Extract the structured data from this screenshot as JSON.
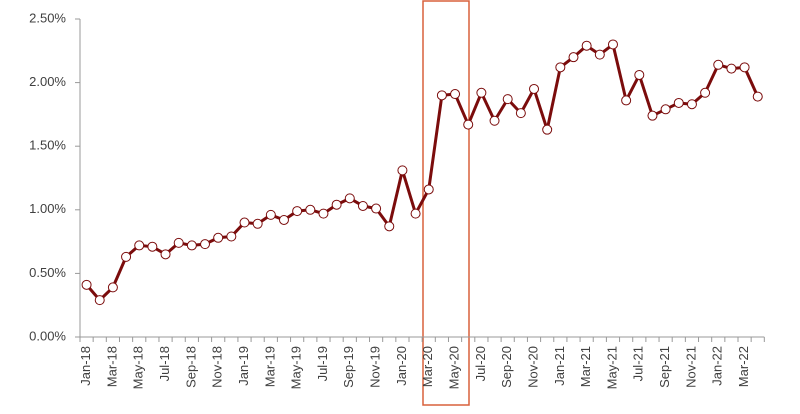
{
  "chart_data": {
    "type": "line",
    "categories": [
      "Jan-18",
      null,
      "Mar-18",
      null,
      "May-18",
      null,
      "Jul-18",
      null,
      "Sep-18",
      null,
      "Nov-18",
      null,
      "Jan-19",
      null,
      "Mar-19",
      null,
      "May-19",
      null,
      "Jul-19",
      null,
      "Sep-19",
      null,
      "Nov-19",
      null,
      "Jan-20",
      null,
      "Mar-20",
      null,
      "May-20",
      null,
      "Jul-20",
      null,
      "Sep-20",
      null,
      "Nov-20",
      null,
      "Jan-21",
      null,
      "Mar-21",
      null,
      "May-21",
      null,
      "Jul-21",
      null,
      "Sep-21",
      null,
      "Nov-21",
      null,
      "Jan-22",
      null,
      "Mar-22",
      null
    ],
    "values": [
      0.41,
      0.29,
      0.39,
      0.63,
      0.72,
      0.71,
      0.65,
      0.74,
      0.72,
      0.73,
      0.78,
      0.79,
      0.9,
      0.89,
      0.96,
      0.92,
      0.99,
      1.0,
      0.97,
      1.04,
      1.09,
      1.03,
      1.01,
      0.87,
      1.31,
      0.97,
      1.16,
      1.9,
      1.91,
      1.67,
      1.92,
      1.7,
      1.87,
      1.76,
      1.95,
      1.63,
      2.12,
      2.2,
      2.29,
      2.22,
      2.3,
      1.86,
      2.06,
      1.74,
      1.79,
      1.84,
      1.83,
      1.92,
      2.14,
      2.11,
      2.12,
      1.89
    ],
    "color": "#7b0c0c",
    "ylim": [
      0,
      2.5
    ],
    "yticks": [
      {
        "value": 0,
        "label": "0.00%"
      },
      {
        "value": 0.5,
        "label": "0.50%"
      },
      {
        "value": 1,
        "label": "1.00%"
      },
      {
        "value": 1.5,
        "label": "1.50%"
      },
      {
        "value": 2,
        "label": "2.00%"
      },
      {
        "value": 2.5,
        "label": "2.50%"
      }
    ],
    "grid": false
  }
}
